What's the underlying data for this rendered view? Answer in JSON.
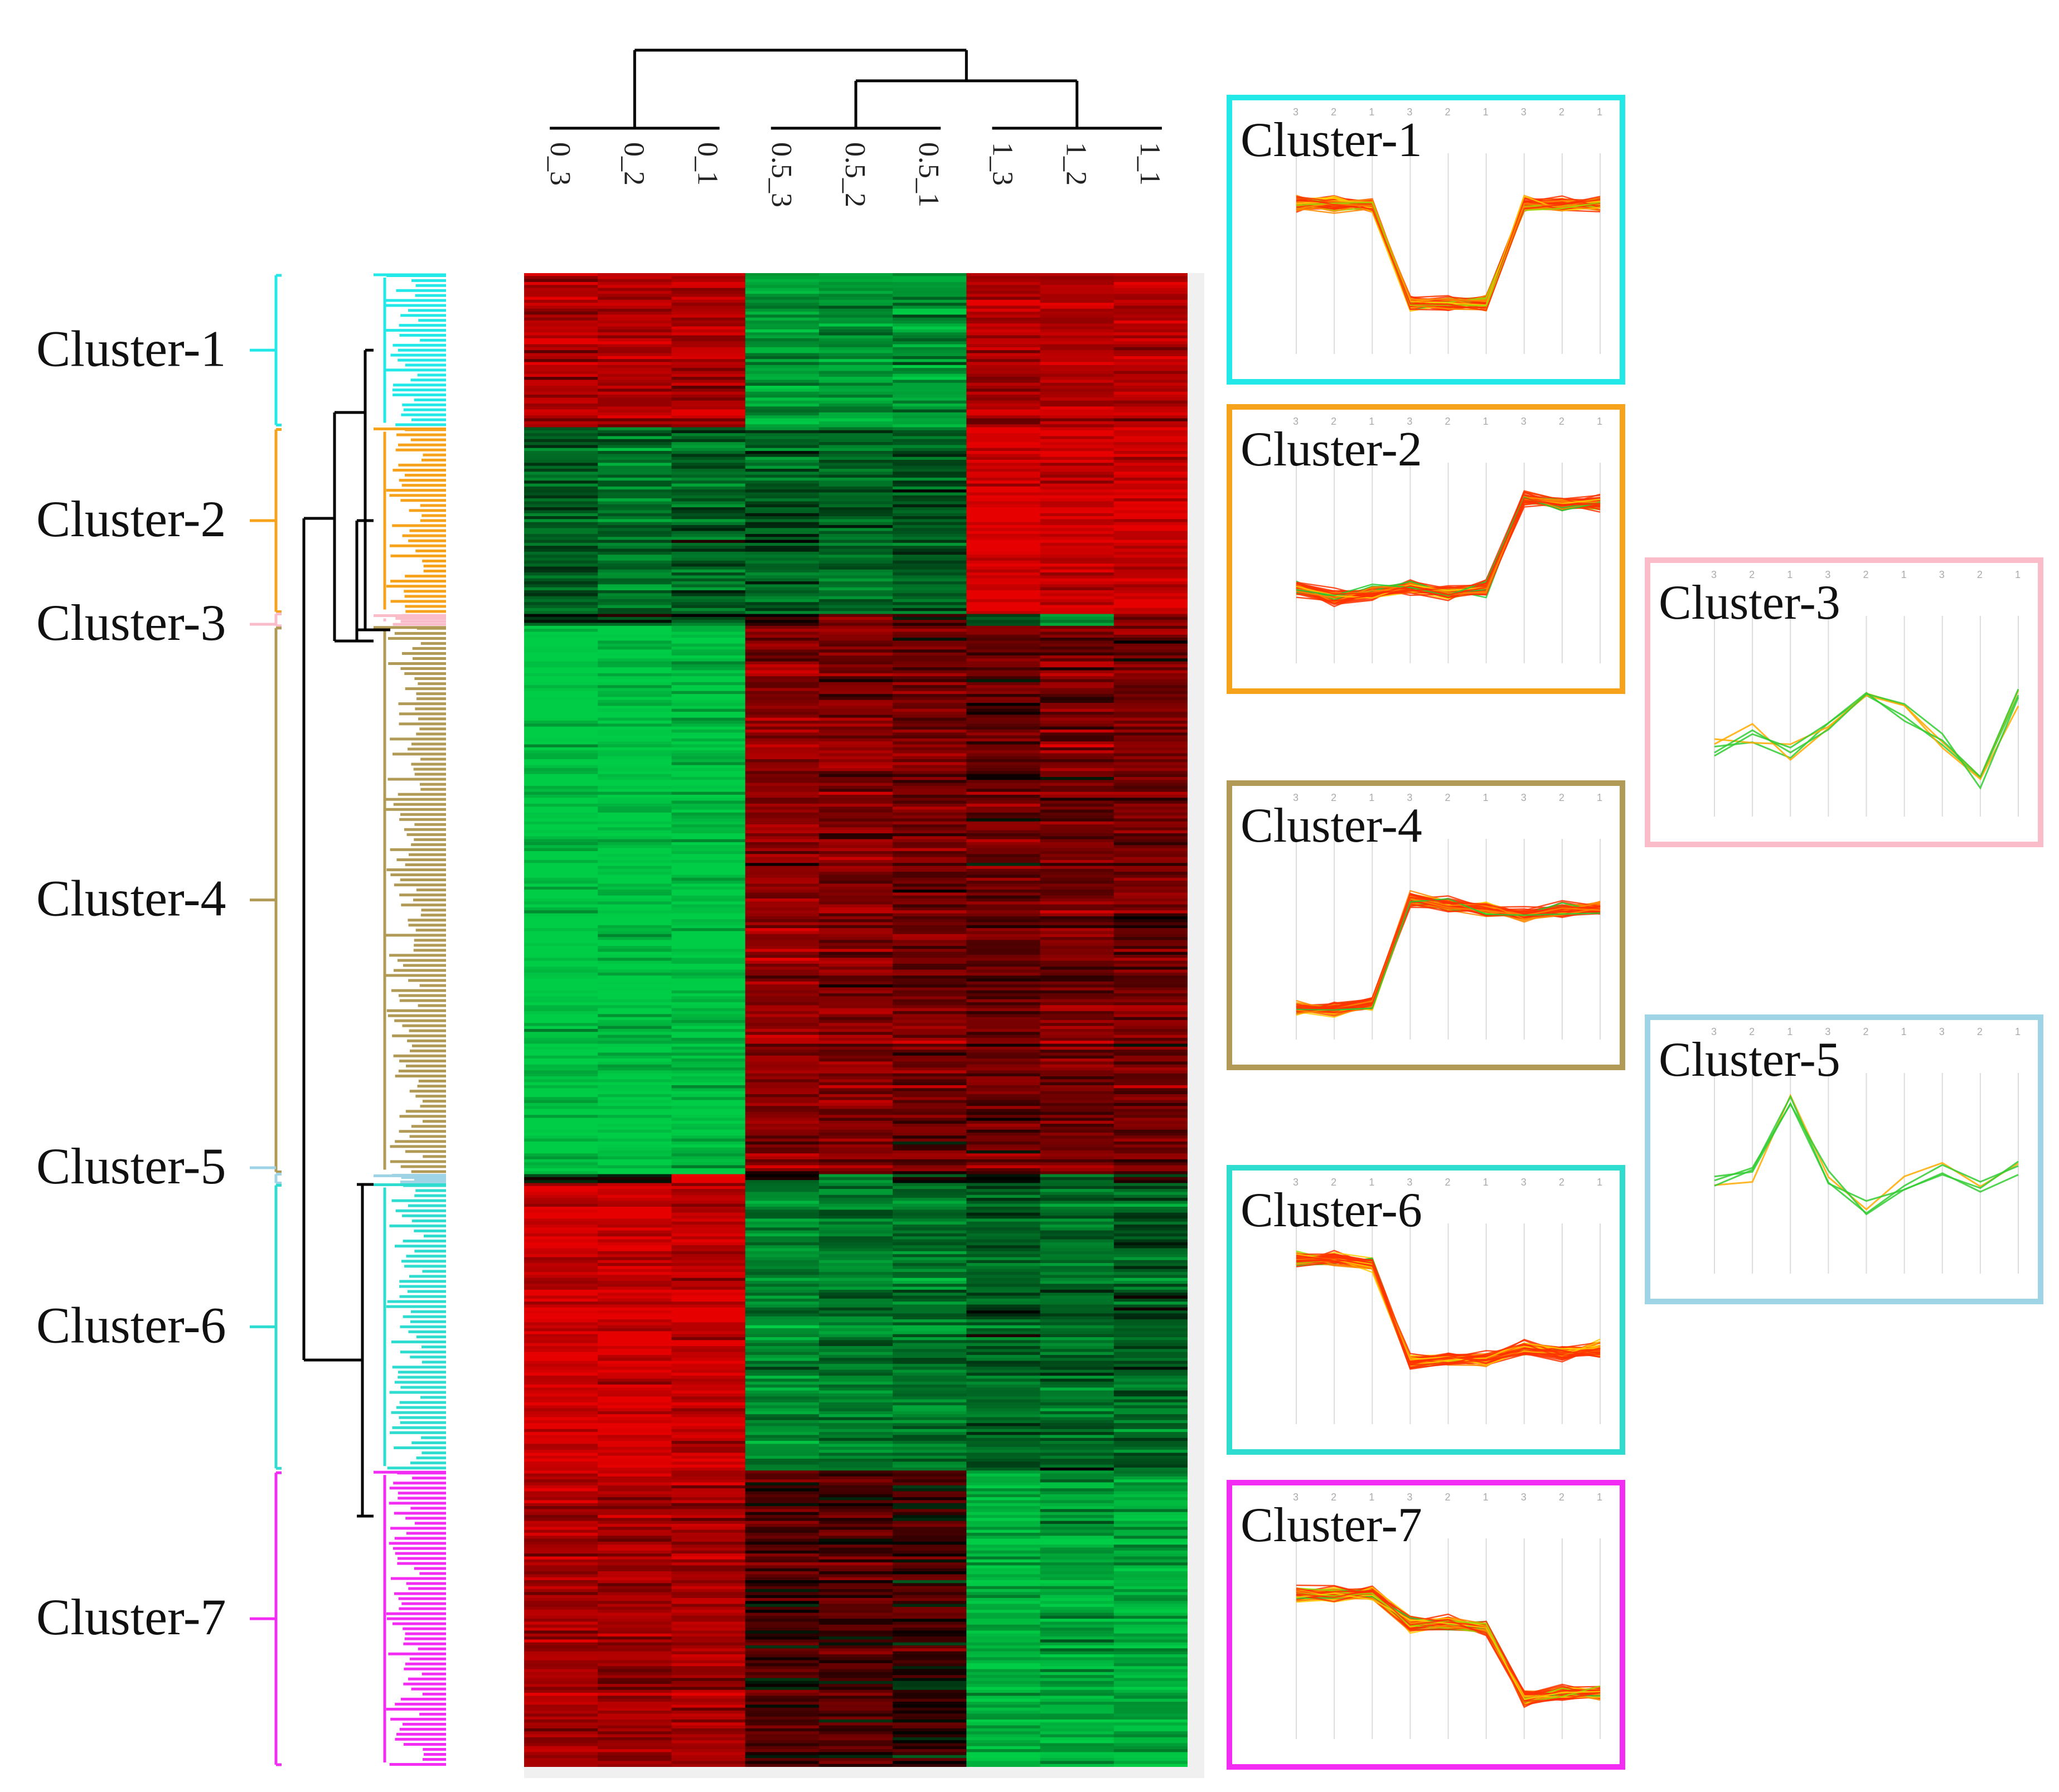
{
  "chart_data": {
    "type": "heatmap",
    "title": "",
    "samples": [
      "0_3",
      "0_2",
      "0_1",
      "0.5_3",
      "0.5_2",
      "0.5_1",
      "1_3",
      "1_2",
      "1_1"
    ],
    "color_scale": {
      "low": "#00c040",
      "mid": "#000000",
      "high": "#e00000"
    },
    "sample_dendrogram": [
      [
        "0_3",
        "0_2",
        "0_1"
      ],
      [
        [
          "0.5_3",
          "0.5_2",
          "0.5_1"
        ],
        [
          "1_3",
          "1_2",
          "1_1"
        ]
      ]
    ],
    "clusters": [
      {
        "name": "Cluster-1",
        "color": "#22e8e8",
        "rows": 52,
        "profile": [
          1,
          1,
          1,
          -1,
          -1,
          -1,
          1,
          1,
          1
        ]
      },
      {
        "name": "Cluster-2",
        "color": "#f7a21b",
        "rows": 63,
        "profile": [
          -0.5,
          -0.7,
          -0.6,
          -0.5,
          -0.6,
          -0.5,
          1.3,
          1.2,
          1.2
        ]
      },
      {
        "name": "Cluster-3",
        "color": "#f9bcc8",
        "rows": 4,
        "profile": [
          -0.6,
          -0.4,
          -0.7,
          -0.2,
          0.5,
          0.1,
          -0.5,
          -1.2,
          0.4
        ]
      },
      {
        "name": "Cluster-4",
        "color": "#b09a55",
        "rows": 185,
        "profile": [
          -1.4,
          -1.4,
          -1.3,
          0.8,
          0.7,
          0.6,
          0.5,
          0.6,
          0.6
        ]
      },
      {
        "name": "Cluster-5",
        "color": "#9fd4e6",
        "rows": 3,
        "profile": [
          -0.2,
          0.0,
          1.6,
          0.0,
          -0.7,
          -0.2,
          0.1,
          -0.3,
          0.1
        ]
      },
      {
        "name": "Cluster-6",
        "color": "#2edcd0",
        "rows": 97,
        "profile": [
          1.3,
          1.3,
          1.2,
          -0.8,
          -0.7,
          -0.7,
          -0.5,
          -0.6,
          -0.5
        ]
      },
      {
        "name": "Cluster-7",
        "color": "#f22cf2",
        "rows": 100,
        "profile": [
          0.9,
          0.9,
          0.9,
          0.3,
          0.3,
          0.2,
          -1.2,
          -1.1,
          -1.1
        ]
      }
    ],
    "panel_axis_ticks": [
      "3",
      "2",
      "1",
      "3",
      "2",
      "1",
      "3",
      "2",
      "1"
    ]
  }
}
